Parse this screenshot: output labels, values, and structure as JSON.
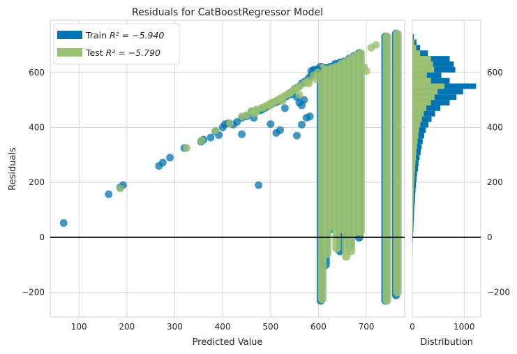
{
  "chart_data": [
    {
      "type": "scatter",
      "title": "Residuals for CatBoostRegressor Model",
      "xlabel": "Predicted Value",
      "ylabel": "Residuals",
      "xlim": [
        40,
        780
      ],
      "ylim": [
        -290,
        790
      ],
      "xticks": [
        100,
        200,
        300,
        400,
        500,
        600,
        700
      ],
      "yticks": [
        -200,
        0,
        200,
        400,
        600
      ],
      "xtick_labels": [
        "100",
        "200",
        "300",
        "400",
        "500",
        "600",
        "700"
      ],
      "ytick_labels": [
        "−200",
        "0",
        "200",
        "400",
        "600"
      ],
      "hline_y": 0,
      "grid": true,
      "legend_position": "top-left",
      "series": [
        {
          "name": "Train",
          "legend_label": "Train",
          "legend_math": "R² = −5.940",
          "r2": -5.94,
          "color": "#0173b2",
          "points": [
            [
              68,
              52
            ],
            [
              162,
              157
            ],
            [
              186,
              182
            ],
            [
              192,
              190
            ],
            [
              267,
              260
            ],
            [
              275,
              272
            ],
            [
              290,
              290
            ],
            [
              320,
              325
            ],
            [
              355,
              348
            ],
            [
              360,
              355
            ],
            [
              375,
              363
            ],
            [
              385,
              385
            ],
            [
              392,
              372
            ],
            [
              400,
              400
            ],
            [
              405,
              412
            ],
            [
              412,
              415
            ],
            [
              422,
              410
            ],
            [
              430,
              420
            ],
            [
              440,
              435
            ],
            [
              450,
              440
            ],
            [
              460,
              455
            ],
            [
              470,
              460
            ],
            [
              475,
              190
            ],
            [
              478,
              462
            ],
            [
              482,
              465
            ],
            [
              487,
              470
            ],
            [
              492,
              475
            ],
            [
              497,
              480
            ],
            [
              500,
              412
            ],
            [
              502,
              485
            ],
            [
              505,
              490
            ],
            [
              510,
              490
            ],
            [
              512,
              380
            ],
            [
              515,
              495
            ],
            [
              520,
              500
            ],
            [
              525,
              505
            ],
            [
              530,
              510
            ],
            [
              535,
              515
            ],
            [
              540,
              525
            ],
            [
              545,
              530
            ],
            [
              550,
              540
            ],
            [
              555,
              545
            ],
            [
              560,
              550
            ],
            [
              565,
              560
            ],
            [
              570,
              565
            ],
            [
              575,
              570
            ],
            [
              580,
              580
            ],
            [
              585,
              590
            ],
            [
              590,
              600
            ],
            [
              595,
              610
            ],
            [
              465,
              435
            ],
            [
              440,
              375
            ],
            [
              545,
              520
            ],
            [
              555,
              510
            ],
            [
              560,
              490
            ],
            [
              565,
              480
            ],
            [
              570,
              500
            ],
            [
              585,
              605
            ],
            [
              590,
              610
            ],
            [
              598,
              612
            ],
            [
              520,
              390
            ],
            [
              530,
              470
            ],
            [
              555,
              370
            ],
            [
              565,
              410
            ],
            [
              575,
              435
            ],
            [
              582,
              440
            ]
          ],
          "bands": [
            {
              "x": 605,
              "ymin": -230,
              "ymax": 620
            },
            {
              "x": 615,
              "ymin": -100,
              "ymax": 615
            },
            {
              "x": 625,
              "ymin": 30,
              "ymax": 620
            },
            {
              "x": 635,
              "ymin": 40,
              "ymax": 630
            },
            {
              "x": 645,
              "ymin": -50,
              "ymax": 635
            },
            {
              "x": 655,
              "ymin": 10,
              "ymax": 640
            },
            {
              "x": 665,
              "ymin": -30,
              "ymax": 650
            },
            {
              "x": 675,
              "ymin": 40,
              "ymax": 660
            },
            {
              "x": 685,
              "ymin": 0,
              "ymax": 670
            },
            {
              "x": 740,
              "ymin": -230,
              "ymax": 730
            },
            {
              "x": 762,
              "ymin": -210,
              "ymax": 740
            }
          ]
        },
        {
          "name": "Test",
          "legend_label": "Test",
          "legend_math": "R² = −5.790",
          "r2": -5.79,
          "color": "#9ac171",
          "points": [
            [
              186,
              178
            ],
            [
              325,
              325
            ],
            [
              355,
              352
            ],
            [
              385,
              388
            ],
            [
              415,
              415
            ],
            [
              440,
              440
            ],
            [
              450,
              445
            ],
            [
              460,
              460
            ],
            [
              465,
              450
            ],
            [
              470,
              465
            ],
            [
              480,
              470
            ],
            [
              485,
              472
            ],
            [
              490,
              478
            ],
            [
              495,
              482
            ],
            [
              500,
              488
            ],
            [
              505,
              490
            ],
            [
              510,
              495
            ],
            [
              515,
              500
            ],
            [
              520,
              505
            ],
            [
              525,
              510
            ],
            [
              530,
              515
            ],
            [
              535,
              520
            ],
            [
              540,
              525
            ],
            [
              545,
              530
            ],
            [
              550,
              540
            ],
            [
              555,
              545
            ],
            [
              560,
              550
            ],
            [
              570,
              560
            ],
            [
              575,
              565
            ],
            [
              580,
              570
            ],
            [
              590,
              590
            ],
            [
              598,
              600
            ],
            [
              695,
              620
            ],
            [
              700,
              605
            ],
            [
              710,
              690
            ],
            [
              720,
              700
            ],
            [
              470,
              455
            ],
            [
              500,
              480
            ],
            [
              525,
              495
            ],
            [
              560,
              520
            ],
            [
              580,
              560
            ],
            [
              595,
              575
            ]
          ],
          "bands": [
            {
              "x": 605,
              "ymin": -225,
              "ymax": 615
            },
            {
              "x": 615,
              "ymin": -60,
              "ymax": 610
            },
            {
              "x": 625,
              "ymin": 40,
              "ymax": 615
            },
            {
              "x": 635,
              "ymin": -40,
              "ymax": 620
            },
            {
              "x": 645,
              "ymin": 30,
              "ymax": 630
            },
            {
              "x": 655,
              "ymin": -70,
              "ymax": 640
            },
            {
              "x": 665,
              "ymin": -50,
              "ymax": 650
            },
            {
              "x": 675,
              "ymin": 20,
              "ymax": 660
            },
            {
              "x": 685,
              "ymin": 20,
              "ymax": 670
            },
            {
              "x": 740,
              "ymin": -230,
              "ymax": 730
            },
            {
              "x": 762,
              "ymin": -200,
              "ymax": 740
            }
          ]
        }
      ]
    },
    {
      "type": "histogram",
      "orientation": "horizontal",
      "xlabel": "Distribution",
      "xlim": [
        0,
        1320
      ],
      "ylim": [
        -290,
        790
      ],
      "xticks": [
        0,
        1000
      ],
      "xtick_labels": [
        "0",
        "1000"
      ],
      "yticks": [
        -200,
        0,
        200,
        400,
        600
      ],
      "ytick_labels": [
        "−200",
        "0",
        "200",
        "400",
        "600"
      ],
      "hline_y": 0,
      "bin_edges": [
        -60,
        -40,
        -20,
        0,
        20,
        40,
        60,
        80,
        100,
        120,
        140,
        160,
        180,
        200,
        220,
        240,
        260,
        280,
        300,
        320,
        340,
        360,
        380,
        400,
        420,
        440,
        460,
        480,
        500,
        520,
        540,
        560,
        580,
        600,
        620,
        640,
        660,
        680,
        700,
        720,
        740
      ],
      "series": [
        {
          "name": "Train",
          "color": "#0173b2",
          "counts": [
            5,
            5,
            10,
            15,
            20,
            25,
            30,
            35,
            40,
            50,
            55,
            60,
            70,
            80,
            90,
            110,
            120,
            140,
            160,
            180,
            200,
            230,
            260,
            310,
            370,
            440,
            540,
            720,
            850,
            980,
            1230,
            720,
            560,
            830,
            800,
            720,
            300,
            150,
            80,
            30
          ]
        },
        {
          "name": "Test",
          "color": "#9ac171",
          "counts": [
            3,
            3,
            5,
            8,
            10,
            12,
            15,
            18,
            20,
            25,
            28,
            30,
            35,
            40,
            45,
            55,
            60,
            70,
            80,
            90,
            100,
            115,
            130,
            155,
            185,
            220,
            270,
            360,
            430,
            490,
            620,
            360,
            280,
            420,
            400,
            360,
            150,
            75,
            40,
            15
          ]
        }
      ]
    }
  ]
}
